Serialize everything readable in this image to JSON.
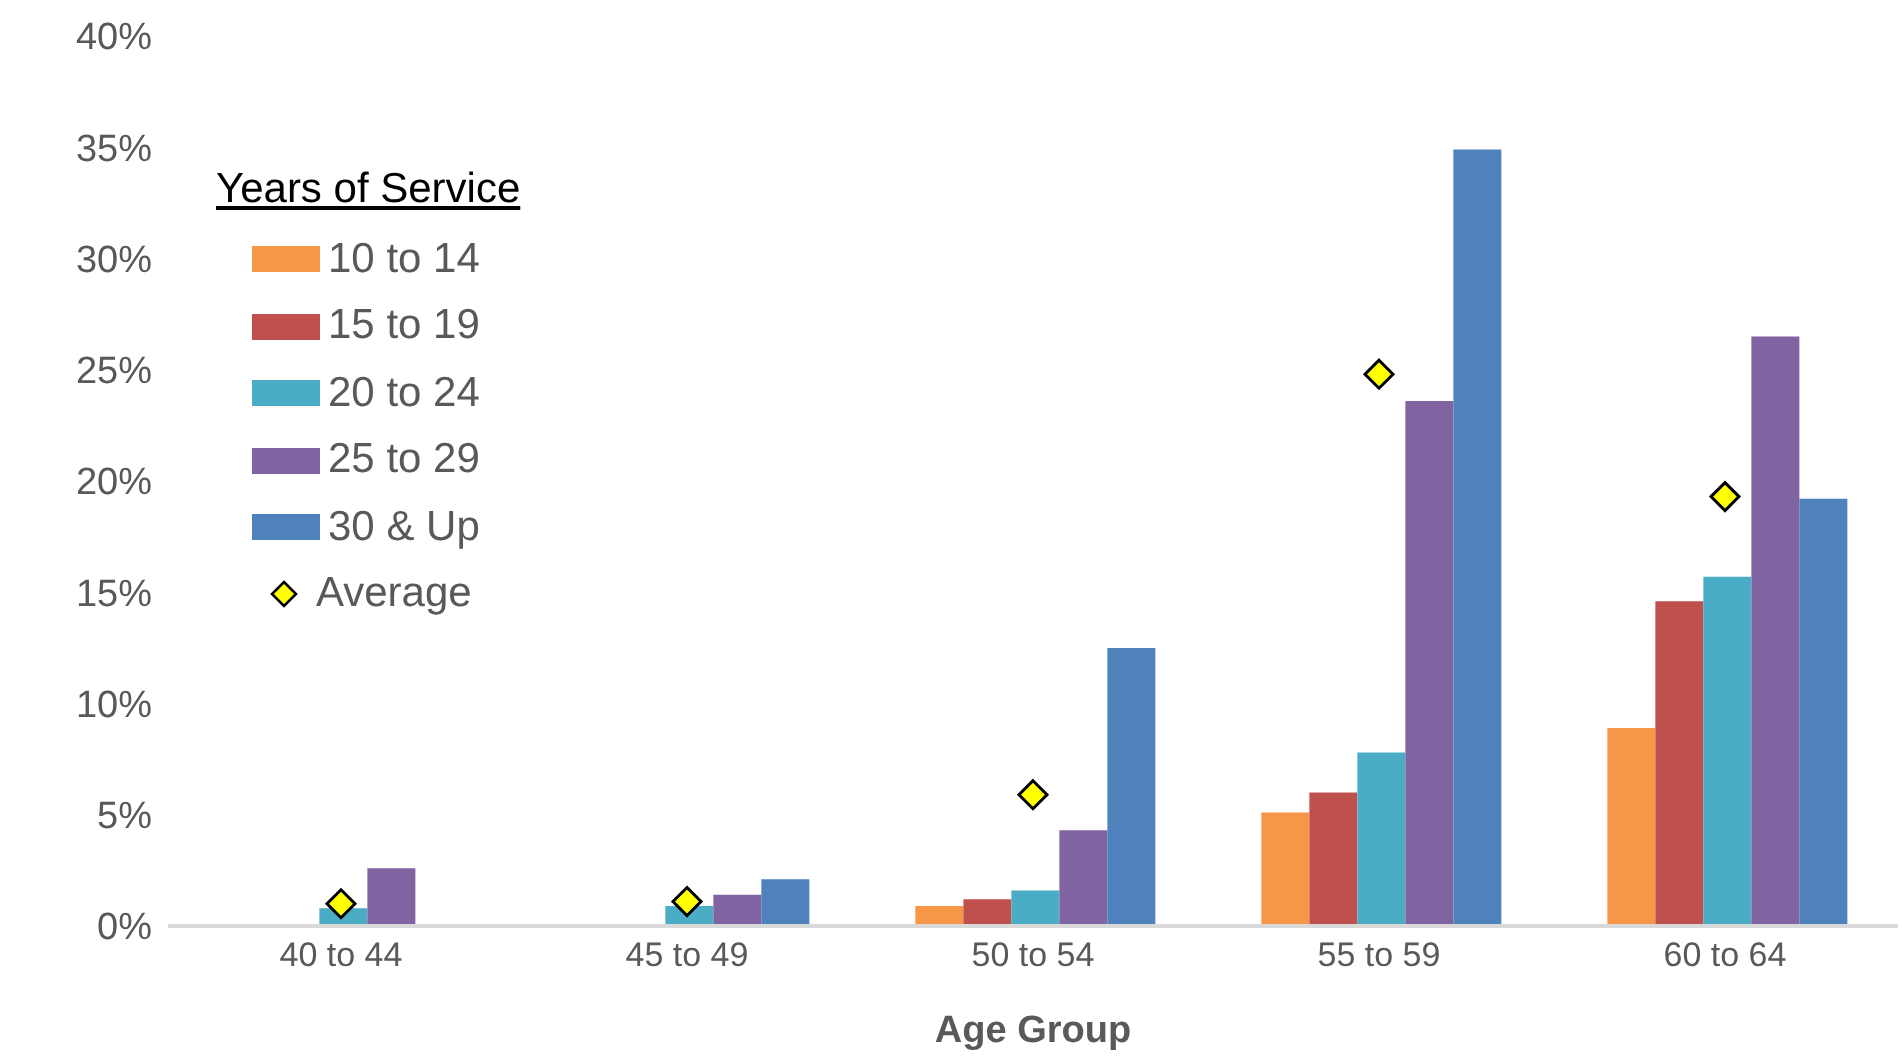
{
  "chart_data": {
    "type": "bar",
    "xlabel": "Age Group",
    "legend_title": "Years of Service",
    "categories": [
      "40 to 44",
      "45 to 49",
      "50 to 54",
      "55 to 59",
      "60 to 64"
    ],
    "series": [
      {
        "name": "10 to 14",
        "color": "#f79646",
        "values": [
          0,
          0,
          0.9,
          5.1,
          8.9
        ]
      },
      {
        "name": "15 to 19",
        "color": "#c0504d",
        "values": [
          0,
          0,
          1.2,
          6.0,
          14.6
        ]
      },
      {
        "name": "20 to 24",
        "color": "#4bacc6",
        "values": [
          0.8,
          0.9,
          1.6,
          7.8,
          15.7
        ]
      },
      {
        "name": "25 to 29",
        "color": "#8064a2",
        "values": [
          2.6,
          1.4,
          4.3,
          23.6,
          26.5
        ]
      },
      {
        "name": "30 & Up",
        "color": "#4f81bd",
        "values": [
          0,
          2.1,
          12.5,
          34.9,
          19.2
        ]
      },
      {
        "name": "Average",
        "type": "scatter",
        "color": "#ffff00",
        "values": [
          1.0,
          1.1,
          5.9,
          24.8,
          19.3
        ]
      }
    ],
    "ylim": [
      0,
      40
    ],
    "yticks": [
      {
        "value": 0,
        "label": "0%"
      },
      {
        "value": 5,
        "label": "5%"
      },
      {
        "value": 10,
        "label": "10%"
      },
      {
        "value": 15,
        "label": "15%"
      },
      {
        "value": 20,
        "label": "20%"
      },
      {
        "value": 25,
        "label": "25%"
      },
      {
        "value": 30,
        "label": "30%"
      },
      {
        "value": 35,
        "label": "35%"
      },
      {
        "value": 40,
        "label": "40%"
      }
    ],
    "grid": false,
    "legend": "top left",
    "marker": "diamond"
  }
}
